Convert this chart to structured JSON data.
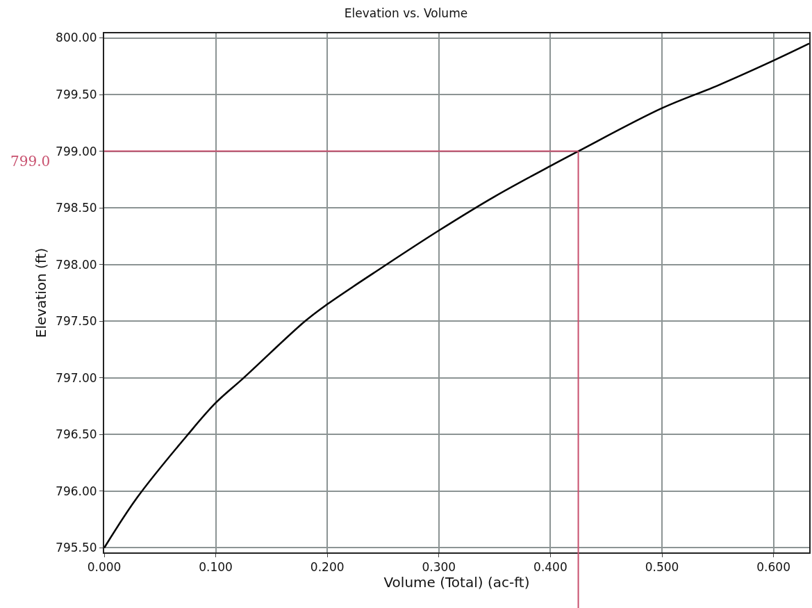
{
  "chart_data": {
    "type": "line",
    "title": "Elevation vs. Volume",
    "xlabel": "Volume (Total) (ac-ft)",
    "ylabel": "Elevation (ft)",
    "x": [
      0,
      0.03,
      0.075,
      0.1,
      0.125,
      0.18,
      0.2,
      0.25,
      0.3,
      0.35,
      0.4,
      0.425,
      0.5,
      0.55,
      0.6,
      0.632
    ],
    "series": [
      {
        "color": "#000000",
        "values": [
          795.5,
          795.95,
          796.5,
          796.78,
          797.0,
          797.5,
          797.65,
          797.98,
          798.3,
          798.6,
          798.87,
          799.0,
          799.38,
          799.58,
          799.8,
          799.95
        ]
      }
    ],
    "xlim": [
      0,
      0.632
    ],
    "ylim": [
      795.46,
      800.04
    ],
    "xticks": [
      {
        "value": 0,
        "label": "0.000"
      },
      {
        "value": 0.1,
        "label": "0.100"
      },
      {
        "value": 0.2,
        "label": "0.200"
      },
      {
        "value": 0.3,
        "label": "0.300"
      },
      {
        "value": 0.4,
        "label": "0.400"
      },
      {
        "value": 0.5,
        "label": "0.500"
      },
      {
        "value": 0.6,
        "label": "0.600"
      }
    ],
    "yticks": [
      {
        "value": 795.5,
        "label": "795.50"
      },
      {
        "value": 796,
        "label": "796.00"
      },
      {
        "value": 796.5,
        "label": "796.50"
      },
      {
        "value": 797,
        "label": "797.00"
      },
      {
        "value": 797.5,
        "label": "797.50"
      },
      {
        "value": 798,
        "label": "798.00"
      },
      {
        "value": 798.5,
        "label": "798.50"
      },
      {
        "value": 799,
        "label": "799.00"
      },
      {
        "value": 799.5,
        "label": "799.50"
      },
      {
        "value": 800,
        "label": "800.00"
      }
    ],
    "ref_lines": [
      {
        "axis": "y",
        "value": 799.0,
        "label": "799.0",
        "color": "#c8506e"
      },
      {
        "axis": "x",
        "value": 0.425,
        "color": "#c8506e"
      }
    ],
    "grid": true,
    "marker": "none",
    "line_style": "solid"
  }
}
